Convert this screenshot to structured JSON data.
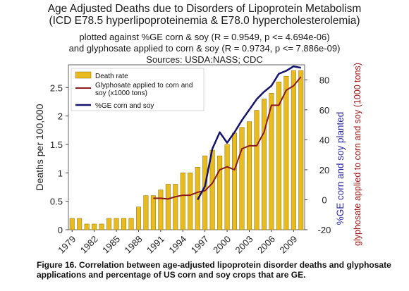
{
  "titles": {
    "line1": "Age Adjusted Deaths due to Disorders of Lipoprotein Metabolism",
    "line2": "(ICD E78.5 hyperlipoproteinemia & E78.0 hypercholesterolemia)",
    "sub1": "plotted against %GE corn & soy (R = 0.9549, p <= 4.694e-06)",
    "sub2": "and glyphosate applied to corn & soy (R = 0.9734, p <= 7.886e-09)",
    "sub3": "Sources: USDA:NASS; CDC"
  },
  "caption": "Figure 16. Correlation between age-adjusted lipoprotein disorder deaths and glyphosate applications and percentage of US corn and soy crops that are GE.",
  "colors": {
    "bar_fill": "#e8bc1f",
    "bar_stroke": "#8a6d00",
    "glyphosate": "#8b1a1a",
    "ge": "#13136e",
    "right_label_ge": "#2d2da8",
    "right_label_gly": "#a01818"
  },
  "chart_data": {
    "type": "bar",
    "xlabel": "",
    "ylabel": "Deaths per 100,000",
    "ylabel_right_1": "%GE corn and soy planted",
    "ylabel_right_2": "glyphosate applied to corn and soy (1000 tons)",
    "ylim": [
      0,
      2.9
    ],
    "y2lim": [
      -20,
      90
    ],
    "yticks": [
      "0",
      "0.5",
      "1",
      "1.5",
      "2",
      "2.5"
    ],
    "y2ticks": [
      "-20",
      "0",
      "20",
      "40",
      "60",
      "80"
    ],
    "x_tick_labels": [
      "1979",
      "1982",
      "1985",
      "1988",
      "1991",
      "1994",
      "1997",
      "2000",
      "2003",
      "2006",
      "2009"
    ],
    "categories": [
      1979,
      1980,
      1981,
      1982,
      1983,
      1984,
      1985,
      1986,
      1987,
      1988,
      1989,
      1990,
      1991,
      1992,
      1993,
      1994,
      1995,
      1996,
      1997,
      1998,
      1999,
      2000,
      2001,
      2002,
      2003,
      2004,
      2005,
      2006,
      2007,
      2008,
      2009,
      2010
    ],
    "legend": [
      "Death rate",
      "Glyphosate applied to corn and soy (x1000 tons)",
      "%GE corn and soy"
    ],
    "legend_position": "top-left",
    "series": [
      {
        "name": "Death rate",
        "axis": "left",
        "kind": "bar",
        "values": [
          0.2,
          0.2,
          0.1,
          0.1,
          0.1,
          0.2,
          0.2,
          0.2,
          0.2,
          0.4,
          0.6,
          0.6,
          0.7,
          0.8,
          0.8,
          1.0,
          1.0,
          1.1,
          1.3,
          1.4,
          1.3,
          1.5,
          1.7,
          1.8,
          1.9,
          2.1,
          2.3,
          2.4,
          2.6,
          2.7,
          2.8,
          2.8
        ]
      },
      {
        "name": "Glyphosate applied to corn and soy (x1000 tons)",
        "axis": "right",
        "kind": "line",
        "x": [
          1990,
          1991,
          1992,
          1993,
          1994,
          1995,
          1996,
          1997,
          1998,
          1999,
          2000,
          2001,
          2002,
          2003,
          2004,
          2005,
          2006,
          2007,
          2008,
          2009,
          2010
        ],
        "values": [
          1,
          1,
          0.5,
          2,
          3,
          3,
          5,
          6,
          11,
          20,
          22,
          20,
          34,
          36,
          36,
          45,
          63,
          63,
          73,
          76,
          82
        ]
      },
      {
        "name": "%GE corn and soy",
        "axis": "right",
        "kind": "line",
        "x": [
          1996,
          1997,
          1998,
          1999,
          2000,
          2001,
          2002,
          2003,
          2004,
          2005,
          2006,
          2007,
          2008,
          2009,
          2010
        ],
        "values": [
          0,
          9,
          34,
          45,
          38,
          45,
          53,
          60,
          67,
          72,
          76,
          84,
          86,
          89,
          88
        ]
      }
    ]
  }
}
